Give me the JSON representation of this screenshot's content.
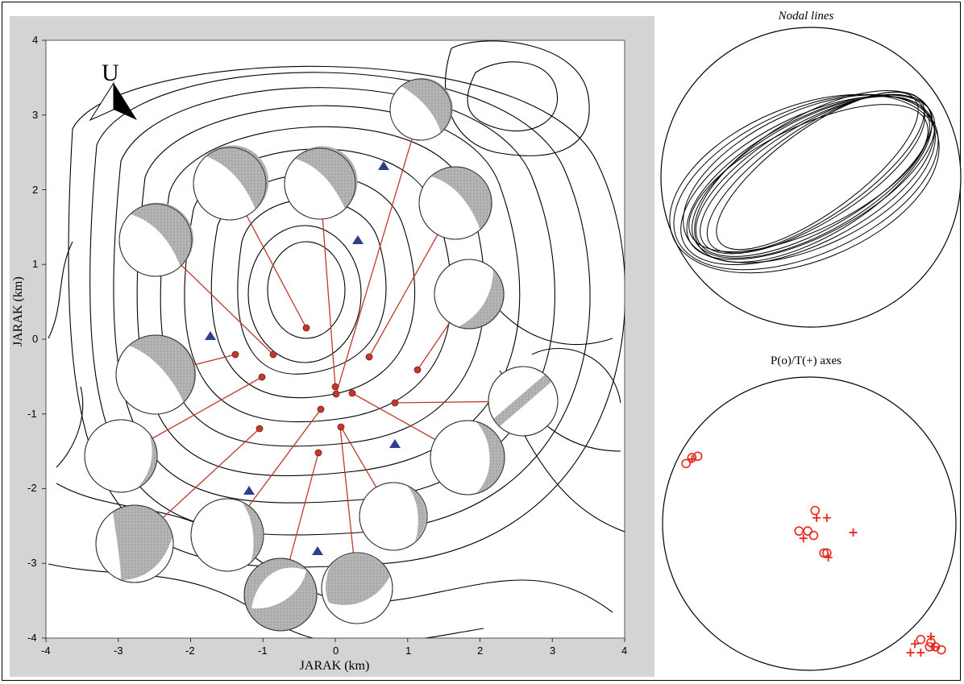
{
  "map": {
    "xlabel": "JARAK (km)",
    "ylabel": "JARAK (km)",
    "north_label": "U",
    "x_ticks": [
      "-4",
      "-3",
      "-2",
      "-1",
      "0",
      "1",
      "2",
      "3",
      "4"
    ],
    "y_ticks": [
      "4",
      "3",
      "2",
      "1",
      "0",
      "-1",
      "-2",
      "-3",
      "-4"
    ],
    "xlim": [
      -4,
      4
    ],
    "ylim": [
      -4,
      4
    ],
    "stations_km": [
      [
        0.65,
        2.35
      ],
      [
        0.3,
        1.35
      ],
      [
        -1.75,
        0.05
      ],
      [
        0.8,
        -1.4
      ],
      [
        -1.2,
        -2.05
      ],
      [
        -0.25,
        -2.85
      ]
    ],
    "events_km": [
      [
        -0.4,
        0.15
      ],
      [
        -0.85,
        -0.2
      ],
      [
        -1.45,
        -0.2
      ],
      [
        0.45,
        -0.2
      ],
      [
        1.1,
        -0.4
      ],
      [
        -1.0,
        -0.5
      ],
      [
        0.0,
        -0.8
      ],
      [
        0.2,
        -0.7
      ],
      [
        -0.2,
        -0.9
      ],
      [
        0.8,
        -0.85
      ],
      [
        0.05,
        -1.15
      ],
      [
        -1.05,
        -1.2
      ],
      [
        -0.25,
        -1.55
      ]
    ],
    "colors": {
      "event": "#c0392b",
      "station": "#2c3e8c",
      "contour": "#000000",
      "beachball_fill": "#a8a8a8"
    }
  },
  "nodal_panel": {
    "title": "Nodal lines"
  },
  "axes_panel": {
    "title": "P(o)/T(+) axes",
    "p_axes": [
      [
        -0.84,
        0.41
      ],
      [
        -0.8,
        0.45
      ],
      [
        -0.76,
        0.46
      ],
      [
        0.04,
        0.09
      ],
      [
        -0.07,
        -0.05
      ],
      [
        -0.01,
        -0.05
      ],
      [
        0.03,
        -0.08
      ],
      [
        0.1,
        -0.2
      ],
      [
        0.12,
        -0.2
      ],
      [
        0.76,
        -0.79
      ],
      [
        0.83,
        -0.81
      ],
      [
        0.86,
        -0.84
      ],
      [
        0.9,
        -0.86
      ],
      [
        0.82,
        -0.84
      ]
    ],
    "t_axes": [
      [
        -0.8,
        0.44
      ],
      [
        0.05,
        0.04
      ],
      [
        0.12,
        0.04
      ],
      [
        -0.04,
        -0.1
      ],
      [
        0.13,
        -0.23
      ],
      [
        0.3,
        -0.06
      ],
      [
        0.72,
        -0.82
      ],
      [
        0.83,
        -0.77
      ],
      [
        0.76,
        -0.88
      ],
      [
        0.85,
        -0.84
      ],
      [
        0.69,
        -0.88
      ]
    ],
    "color": "#e8261c"
  }
}
